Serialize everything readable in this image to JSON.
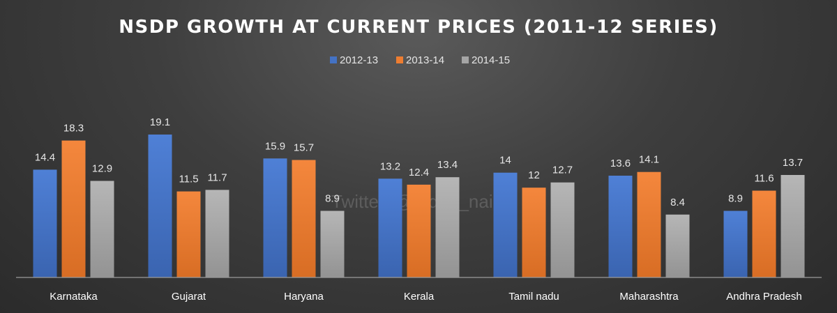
{
  "chart_data": {
    "type": "bar",
    "title": "NSDP GROWTH AT CURRENT PRICES (2011-12 SERIES)",
    "categories": [
      "Karnataka",
      "Gujarat",
      "Haryana",
      "Kerala",
      "Tamil nadu",
      "Maharashtra",
      "Andhra Pradesh"
    ],
    "series": [
      {
        "name": "2012-13",
        "color": "#4472c4",
        "values": [
          14.4,
          19.1,
          15.9,
          13.2,
          14,
          13.6,
          8.9
        ],
        "labels": [
          "14.4",
          "19.1",
          "15.9",
          "13.2",
          "14",
          "13.6",
          "8.9"
        ]
      },
      {
        "name": "2013-14",
        "color": "#ed7d31",
        "values": [
          18.3,
          11.5,
          15.7,
          12.4,
          12,
          14.1,
          11.6
        ],
        "labels": [
          "18.3",
          "11.5",
          "15.7",
          "12.4",
          "12",
          "14.1",
          "11.6"
        ]
      },
      {
        "name": "2014-15",
        "color": "#a5a5a5",
        "values": [
          12.9,
          11.7,
          8.9,
          13.4,
          12.7,
          8.4,
          13.7
        ],
        "labels": [
          "12.9",
          "11.7",
          "8.9",
          "13.4",
          "12.7",
          "8.4",
          "13.7"
        ]
      }
    ],
    "ylim": [
      0,
      22
    ],
    "legend": "top-center",
    "grid": false,
    "watermark": "Twitter: @t_d_h_nair"
  }
}
